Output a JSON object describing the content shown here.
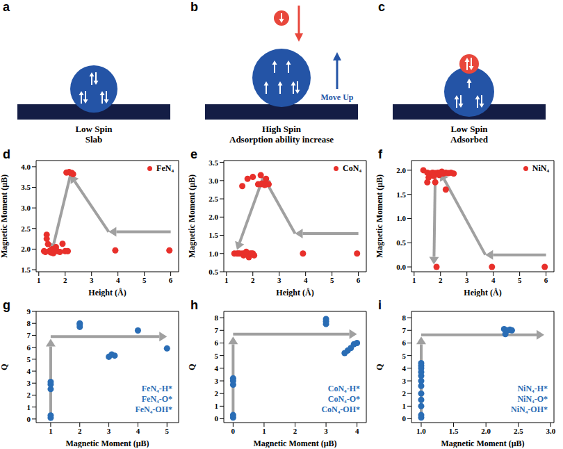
{
  "diagrams": [
    {
      "panel": "a",
      "lines": [
        "Low Spin",
        "Slab"
      ]
    },
    {
      "panel": "b",
      "lines": [
        "High Spin",
        "Adsorption ability increase"
      ],
      "arrow_label": "Move Up"
    },
    {
      "panel": "c",
      "lines": [
        "Low Spin",
        "Adsorbed"
      ]
    }
  ],
  "chart_data": [
    {
      "panel": "d",
      "type": "scatter",
      "x_label": "Height (Å)",
      "y_label": "Magnetic Moment (μB)",
      "xlim": [
        0.9,
        6.3
      ],
      "xticks": [
        1,
        2,
        3,
        4,
        5,
        6
      ],
      "ylim": [
        1.45,
        4.15
      ],
      "yticks": [
        1.5,
        {
          "value": 2,
          "label": "2.0"
        },
        2.5,
        {
          "value": 3,
          "label": "3.0"
        },
        3.5,
        {
          "value": 4,
          "label": "4.0"
        }
      ],
      "legend": "upper right",
      "series": [
        {
          "name": "FeN₄",
          "color": "#e8302b",
          "marker": "circle",
          "x": [
            1.3,
            1.3,
            1.35,
            1.4,
            1.45,
            1.5,
            1.55,
            1.6,
            1.65,
            1.7,
            1.8,
            1.9,
            2.0,
            2.1,
            1.2,
            1.25,
            2.05,
            2.15,
            2.2,
            2.3,
            2.25,
            3.9,
            5.95
          ],
          "values": [
            2.35,
            2.25,
            2.12,
            1.95,
            1.92,
            2.0,
            1.9,
            1.95,
            2.05,
            1.95,
            1.93,
            2.13,
            1.95,
            1.95,
            1.95,
            1.93,
            3.86,
            3.87,
            3.85,
            3.82,
            3.85,
            1.97,
            1.97
          ]
        }
      ],
      "arrows": [
        [
          6.0,
          2.42,
          3.65,
          2.42
        ],
        [
          3.65,
          2.42,
          2.2,
          3.8
        ],
        [
          2.2,
          3.8,
          1.5,
          1.95
        ]
      ]
    },
    {
      "panel": "e",
      "type": "scatter",
      "x_label": "Height (Å)",
      "y_label": "Magnetic Moment (μB)",
      "xlim": [
        0.9,
        6.3
      ],
      "xticks": [
        1,
        2,
        3,
        4,
        5,
        6
      ],
      "ylim": [
        0.5,
        3.55
      ],
      "yticks": [
        0.5,
        {
          "value": 1,
          "label": "1.0"
        },
        1.5,
        {
          "value": 2,
          "label": "2.0"
        },
        2.5,
        {
          "value": 3,
          "label": "3.0"
        },
        3.5
      ],
      "legend": "upper right",
      "series": [
        {
          "name": "CoN₄",
          "color": "#e8302b",
          "marker": "circle",
          "x": [
            1.3,
            1.4,
            1.45,
            1.5,
            1.6,
            1.65,
            1.7,
            1.8,
            1.85,
            1.9,
            2.0,
            2.05,
            1.75,
            1.95,
            2.2,
            2.3,
            2.35,
            2.4,
            2.45,
            2.5,
            2.6,
            1.8,
            2.0,
            2.3,
            2.5,
            1.6,
            3.9,
            5.95
          ],
          "values": [
            1.0,
            1.0,
            1.0,
            1.0,
            1.0,
            0.95,
            1.0,
            1.0,
            0.9,
            1.0,
            1.0,
            0.95,
            1.05,
            1.0,
            2.9,
            2.9,
            2.92,
            2.9,
            2.88,
            2.9,
            2.9,
            3.05,
            3.1,
            3.15,
            3.05,
            2.85,
            1.0,
            1.0
          ]
        }
      ],
      "arrows": [
        [
          6.0,
          1.55,
          3.6,
          1.55
        ],
        [
          3.6,
          1.55,
          2.4,
          3.1
        ],
        [
          2.4,
          3.1,
          1.4,
          1.1
        ]
      ]
    },
    {
      "panel": "f",
      "type": "scatter",
      "x_label": "Height (Å)",
      "y_label": "Magnetic Moment (μB)",
      "xlim": [
        0.9,
        6.3
      ],
      "xticks": [
        1,
        2,
        3,
        4,
        5,
        6
      ],
      "ylim": [
        -0.1,
        2.2
      ],
      "yticks": [
        {
          "value": 0,
          "label": "0.0"
        },
        0.5,
        {
          "value": 1,
          "label": "1.0"
        },
        1.5,
        {
          "value": 2,
          "label": "2.0"
        }
      ],
      "legend": "upper right",
      "series": [
        {
          "name": "NiN₄",
          "color": "#e8302b",
          "marker": "circle",
          "x": [
            1.35,
            1.5,
            1.6,
            1.7,
            1.8,
            1.9,
            2.0,
            2.1,
            2.2,
            2.3,
            2.4,
            2.5,
            1.55,
            1.75,
            1.95,
            2.05,
            1.5,
            1.8,
            2.2,
            1.85,
            3.95,
            5.95
          ],
          "values": [
            2.0,
            1.95,
            1.93,
            1.95,
            1.94,
            1.95,
            1.95,
            1.93,
            1.95,
            1.94,
            1.95,
            1.93,
            1.85,
            1.88,
            1.9,
            1.97,
            1.75,
            1.75,
            1.6,
            0.0,
            0.0,
            0.0
          ]
        }
      ],
      "arrows": [
        [
          6.0,
          0.25,
          3.7,
          0.25
        ],
        [
          3.7,
          0.25,
          2.0,
          1.95
        ],
        [
          1.8,
          1.9,
          1.75,
          0.05
        ]
      ]
    },
    {
      "panel": "g",
      "type": "scatter",
      "x_label": "Magnetic Moment (μB)",
      "y_label": "Q",
      "xlim": [
        0.5,
        5.4
      ],
      "xticks": [
        1,
        2,
        3,
        4,
        5
      ],
      "ylim": [
        -0.3,
        9
      ],
      "yticks": [
        0,
        1,
        2,
        3,
        4,
        5,
        6,
        7,
        8,
        9
      ],
      "annotations": [
        "FeN₄-H*",
        "FeN₄-O*",
        "FeN₄-OH*"
      ],
      "series": [
        {
          "color": "#2a6db5",
          "marker": "circle",
          "x": [
            1,
            1,
            1,
            1,
            1,
            2,
            2,
            2,
            3,
            3.1,
            3.2,
            4,
            5
          ],
          "values": [
            0.1,
            0.3,
            2.5,
            2.9,
            3.1,
            7.7,
            7.9,
            8.0,
            5.2,
            5.4,
            5.3,
            7.4,
            5.9
          ]
        }
      ],
      "arrows": [
        [
          1,
          0.5,
          1,
          6.7
        ],
        [
          1,
          6.9,
          5.0,
          6.9
        ]
      ]
    },
    {
      "panel": "h",
      "type": "scatter",
      "x_label": "Magnetic Moment (μB)",
      "y_label": "Q",
      "xlim": [
        -0.3,
        4.3
      ],
      "xticks": [
        0,
        1,
        2,
        3,
        4
      ],
      "ylim": [
        -0.3,
        8.5
      ],
      "yticks": [
        0,
        1,
        2,
        3,
        4,
        5,
        6,
        7,
        8
      ],
      "annotations": [
        "CoN₄-H*",
        "CoN₄-O*",
        "CoN₄-OH*"
      ],
      "series": [
        {
          "color": "#2a6db5",
          "marker": "circle",
          "x": [
            0,
            0,
            0,
            0,
            0,
            3,
            3,
            3,
            3.6,
            3.7,
            3.8,
            3.9,
            4.0
          ],
          "values": [
            0.1,
            0.3,
            2.7,
            3.0,
            3.2,
            7.5,
            7.7,
            7.9,
            5.2,
            5.4,
            5.6,
            5.9,
            6.0
          ]
        }
      ],
      "arrows": [
        [
          0,
          0.5,
          0,
          6.5
        ],
        [
          0,
          6.7,
          4.0,
          6.7
        ]
      ]
    },
    {
      "panel": "i",
      "type": "scatter",
      "x_label": "Magnetic Moment (μB)",
      "y_label": "Q",
      "xlim": [
        0.85,
        3.05
      ],
      "xticks": [
        {
          "value": 1,
          "label": "1.0"
        },
        1.5,
        {
          "value": 2,
          "label": "2.0"
        },
        2.5,
        {
          "value": 3,
          "label": "3.0"
        }
      ],
      "ylim": [
        -0.3,
        8.5
      ],
      "yticks": [
        0,
        1,
        2,
        3,
        4,
        5,
        6,
        7,
        8
      ],
      "annotations": [
        "NiN₄-H*",
        "NiN₄-O*",
        "NiN₄-OH*"
      ],
      "series": [
        {
          "color": "#2a6db5",
          "marker": "circle",
          "x": [
            1,
            1,
            1,
            1,
            1,
            1,
            1,
            1,
            1,
            1,
            1,
            1,
            2.28,
            2.3,
            2.33,
            2.37,
            2.4
          ],
          "values": [
            0.1,
            0.3,
            1.0,
            1.5,
            2.0,
            2.6,
            3.0,
            3.4,
            3.7,
            4.0,
            4.2,
            4.4,
            7.1,
            6.7,
            7.0,
            7.05,
            7.0
          ]
        }
      ],
      "arrows": [
        [
          1,
          0.3,
          1,
          6.5
        ],
        [
          1,
          6.65,
          2.9,
          6.65
        ]
      ]
    }
  ]
}
